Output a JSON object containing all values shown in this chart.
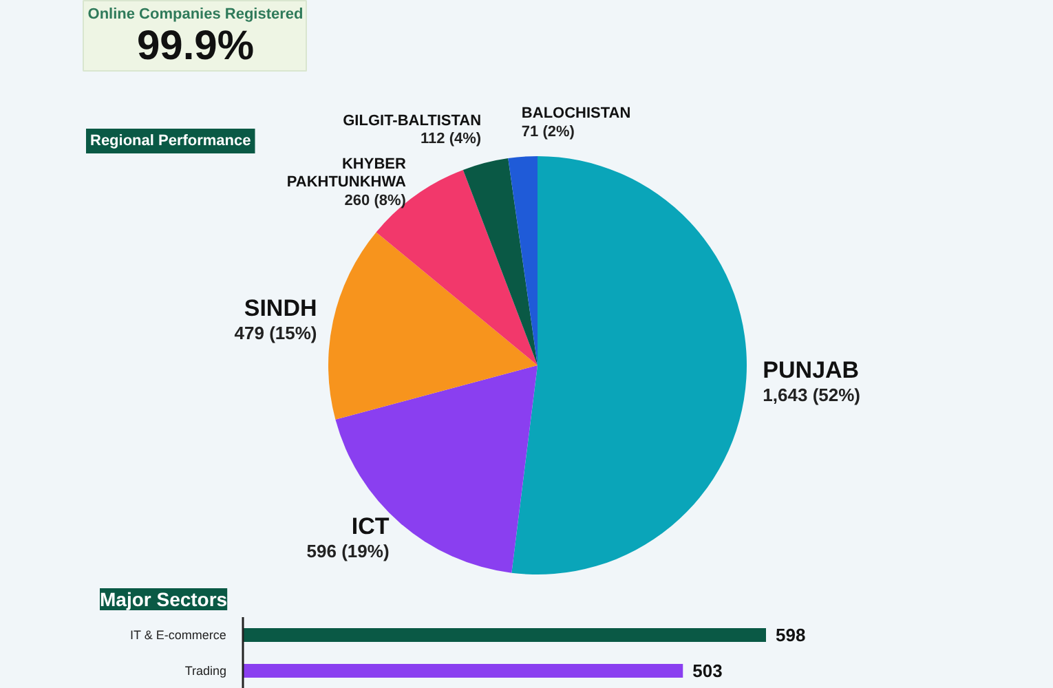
{
  "chart_data": [
    {
      "type": "other",
      "title": "Online Companies Registered",
      "annotations": [
        "99.9%"
      ]
    },
    {
      "type": "pie",
      "title": "Regional Performance",
      "categories": [
        "PUNJAB",
        "ICT",
        "SINDH",
        "KHYBER PAKHTUNKHWA",
        "GILGIT-BALTISTAN",
        "BALOCHISTAN"
      ],
      "values": [
        1643,
        596,
        479,
        260,
        112,
        71
      ],
      "colors": [
        "#0aa5b9",
        "#8a3ff0",
        "#f7941d",
        "#f2386b",
        "#0a5945",
        "#1f5bd8"
      ],
      "value_labels": [
        "1,643 (52%)",
        "596 (19%)",
        "479 (15%)",
        "260 (8%)",
        "112 (4%)",
        "71 (2%)"
      ]
    },
    {
      "type": "bar",
      "orientation": "horizontal",
      "title": "Major Sectors",
      "categories": [
        "IT & E-commerce",
        "Trading"
      ],
      "values": [
        598,
        503
      ],
      "colors": [
        "#0a5945",
        "#8a3ff0"
      ],
      "data_labels": true
    }
  ]
}
